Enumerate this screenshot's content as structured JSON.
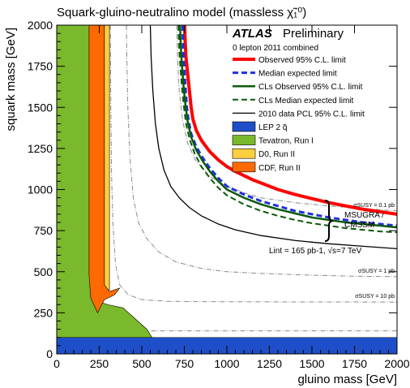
{
  "chart_data": {
    "type": "line",
    "title": "Squark-gluino-neutralino model (massless χ̃₁⁰)",
    "xlabel": "gluino mass [GeV]",
    "ylabel": "squark mass [GeV]",
    "xlim": [
      0,
      2000
    ],
    "ylim": [
      0,
      2000
    ],
    "x_ticks": [
      0,
      250,
      500,
      750,
      1000,
      1250,
      1500,
      1750,
      2000
    ],
    "y_ticks": [
      0,
      250,
      500,
      750,
      1000,
      1250,
      1500,
      1750,
      2000
    ],
    "x_tick_labels": [
      "0",
      "250",
      "500",
      "750",
      "1000",
      "1250",
      "1500",
      "1750",
      "2000"
    ],
    "y_tick_labels": [
      "0",
      "250",
      "500",
      "750",
      "1000",
      "1250",
      "1500",
      "1750",
      "2000"
    ],
    "grid": false,
    "legend_position": "top-right",
    "header": {
      "atlas": "ATLAS",
      "preliminary": "Preliminary",
      "subtitle": "0 lepton 2011 combined",
      "lumi": "Lint = 165 pb-1, √s=7 TeV",
      "brace_label_1": "MSUGRA /",
      "brace_label_2": "CMSSM"
    },
    "series": [
      {
        "name": "Observed 95% C.L. limit",
        "color": "#ff0000",
        "style": "solid",
        "width": 4,
        "x": [
          752,
          755,
          760,
          770,
          780,
          790,
          800,
          820,
          850,
          900,
          950,
          1000,
          1050,
          1100,
          1150,
          1200,
          1300,
          1400,
          1500,
          1600,
          1700,
          1800,
          1900,
          2000
        ],
        "y": [
          2000,
          1900,
          1800,
          1700,
          1600,
          1500,
          1430,
          1360,
          1300,
          1230,
          1180,
          1140,
          1110,
          1085,
          1060,
          1040,
          1000,
          970,
          945,
          920,
          900,
          880,
          865,
          850
        ]
      },
      {
        "name": "Median expected limit",
        "color": "#1f2fe0",
        "style": "dashed",
        "width": 3,
        "x": [
          740,
          742,
          746,
          752,
          758,
          765,
          775,
          790,
          820,
          860,
          900,
          950,
          1000,
          1100,
          1200,
          1300,
          1400,
          1500,
          1600,
          1700,
          1800,
          1900,
          2000
        ],
        "y": [
          2000,
          1900,
          1800,
          1700,
          1600,
          1500,
          1420,
          1340,
          1260,
          1190,
          1130,
          1070,
          1020,
          970,
          930,
          900,
          870,
          850,
          830,
          815,
          800,
          790,
          780
        ]
      },
      {
        "name": "CLs Observed 95% C.L. limit",
        "color": "#0b5a0b",
        "style": "solid",
        "width": 2.5,
        "x": [
          725,
          728,
          733,
          740,
          748,
          758,
          770,
          790,
          820,
          860,
          900,
          950,
          1000,
          1100,
          1200,
          1300,
          1400,
          1500,
          1600,
          1700,
          1800,
          1900,
          2000
        ],
        "y": [
          2000,
          1900,
          1800,
          1700,
          1600,
          1500,
          1410,
          1320,
          1240,
          1170,
          1110,
          1050,
          1000,
          950,
          910,
          880,
          855,
          830,
          815,
          800,
          790,
          780,
          770
        ]
      },
      {
        "name": "CLs Median expected limit",
        "color": "#0b5a0b",
        "style": "dashed",
        "width": 2,
        "x": [
          715,
          718,
          723,
          730,
          738,
          748,
          760,
          780,
          810,
          850,
          900,
          950,
          1000,
          1100,
          1200,
          1300,
          1400,
          1500,
          1600,
          1700,
          1800,
          1900,
          2000
        ],
        "y": [
          2000,
          1900,
          1800,
          1700,
          1600,
          1500,
          1400,
          1310,
          1220,
          1140,
          1070,
          1010,
          965,
          910,
          870,
          840,
          815,
          795,
          780,
          765,
          755,
          745,
          740
        ]
      },
      {
        "name": "2010 data PCL 95% C.L. limit",
        "color": "#000000",
        "style": "solid",
        "width": 1.3,
        "x": [
          550,
          555,
          565,
          580,
          600,
          630,
          670,
          720,
          780,
          850,
          950,
          1050,
          1200,
          1400,
          1600,
          1800,
          2000
        ],
        "y": [
          2000,
          1800,
          1600,
          1400,
          1250,
          1120,
          1020,
          950,
          890,
          840,
          790,
          755,
          720,
          690,
          670,
          655,
          640
        ]
      }
    ],
    "contours": [
      {
        "label": "σSUSY = 0.1 pb",
        "x": [
          705,
          710,
          720,
          740,
          770,
          820,
          900,
          1000,
          1100,
          1200,
          1400,
          1600,
          1800,
          2000
        ],
        "y": [
          2000,
          1800,
          1600,
          1420,
          1280,
          1170,
          1080,
          1020,
          980,
          950,
          920,
          900,
          885,
          870
        ]
      },
      {
        "label": "σSUSY = 1 pb",
        "x": [
          410,
          412,
          418,
          430,
          450,
          480,
          530,
          600,
          700,
          850,
          1000,
          1200,
          1400,
          1600,
          1800,
          2000
        ],
        "y": [
          2000,
          1800,
          1500,
          1200,
          950,
          800,
          700,
          620,
          560,
          520,
          500,
          490,
          482,
          476,
          472,
          470
        ]
      },
      {
        "label": "σSUSY = 10 pb",
        "x": [
          315,
          316,
          318,
          322,
          330,
          345,
          370,
          420,
          500,
          650,
          850,
          1100,
          1400,
          1700,
          2000
        ],
        "y": [
          2000,
          1800,
          1500,
          1100,
          800,
          550,
          420,
          360,
          330,
          320,
          318,
          317,
          316,
          316,
          315
        ]
      },
      {
        "label": "",
        "x": [
          555,
          600,
          700,
          900,
          1200,
          1500,
          1800,
          2000
        ],
        "y": [
          140,
          140,
          140,
          140,
          140,
          140,
          140,
          140
        ]
      }
    ],
    "excluded_regions": [
      {
        "name": "LEP 2 q̃",
        "color": "#1e4fc8",
        "points": [
          [
            0,
            0
          ],
          [
            2000,
            0
          ],
          [
            2000,
            100
          ],
          [
            0,
            100
          ]
        ]
      },
      {
        "name": "Tevatron, Run I",
        "color": "#7ab82c",
        "points": [
          [
            0,
            100
          ],
          [
            0,
            2000
          ],
          [
            200,
            2000
          ],
          [
            200,
            400
          ],
          [
            240,
            320
          ],
          [
            300,
            300
          ],
          [
            390,
            280
          ],
          [
            530,
            150
          ],
          [
            560,
            100
          ]
        ]
      },
      {
        "name": "D0, Run II",
        "color": "#fccf40",
        "points": [
          [
            280,
            2000
          ],
          [
            310,
            2000
          ],
          [
            310,
            390
          ],
          [
            280,
            390
          ]
        ]
      },
      {
        "name": "CDF, Run II",
        "color": "#ff6a00",
        "points": [
          [
            190,
            2000
          ],
          [
            280,
            2000
          ],
          [
            280,
            420
          ],
          [
            310,
            380
          ],
          [
            370,
            400
          ],
          [
            340,
            360
          ],
          [
            280,
            330
          ],
          [
            240,
            250
          ],
          [
            200,
            340
          ],
          [
            190,
            480
          ]
        ]
      }
    ]
  },
  "legend": {
    "items": [
      {
        "label": "Observed 95% C.L. limit",
        "kind": "line",
        "color": "#ff0000",
        "style": "solid",
        "width": 4
      },
      {
        "label": "Median expected limit",
        "kind": "line",
        "color": "#1f2fe0",
        "style": "dashed",
        "width": 3
      },
      {
        "label": "CLs Observed 95% C.L. limit",
        "kind": "line",
        "color": "#0b5a0b",
        "style": "solid",
        "width": 2.5
      },
      {
        "label": "CLs Median expected limit",
        "kind": "line",
        "color": "#0b5a0b",
        "style": "dashed",
        "width": 2
      },
      {
        "label": "2010 data PCL 95% C.L. limit",
        "kind": "line",
        "color": "#000000",
        "style": "solid",
        "width": 1.3
      },
      {
        "label": "LEP 2 q̃",
        "kind": "box",
        "color": "#1e4fc8"
      },
      {
        "label": "Tevatron, Run I",
        "kind": "box",
        "color": "#7ab82c"
      },
      {
        "label": "D0, Run II",
        "kind": "box",
        "color": "#fccf40"
      },
      {
        "label": "CDF, Run II",
        "kind": "box",
        "color": "#ff6a00"
      }
    ]
  }
}
